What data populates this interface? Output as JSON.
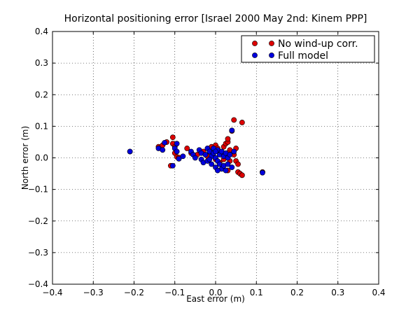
{
  "chart_data": {
    "type": "scatter",
    "title": "Horizontal positioning error [Israel 2000 May 2nd: Kinem PPP]",
    "xlabel": "East error (m)",
    "ylabel": "North error (m)",
    "xlim": [
      -0.4,
      0.4
    ],
    "ylim": [
      -0.4,
      0.4
    ],
    "xticks": [
      -0.4,
      -0.3,
      -0.2,
      -0.1,
      0.0,
      0.1,
      0.2,
      0.3,
      0.4
    ],
    "yticks": [
      -0.4,
      -0.3,
      -0.2,
      -0.1,
      0.0,
      0.1,
      0.2,
      0.3,
      0.4
    ],
    "xtick_labels": [
      "−0.4",
      "−0.3",
      "−0.2",
      "−0.1",
      "0.0",
      "0.1",
      "0.2",
      "0.3",
      "0.4"
    ],
    "ytick_labels": [
      "−0.4",
      "−0.3",
      "−0.2",
      "−0.1",
      "0.0",
      "0.1",
      "0.2",
      "0.3",
      "0.4"
    ],
    "grid": true,
    "legend_position": "top-right",
    "series": [
      {
        "name": "No wind-up corr.",
        "color": "#dd0000",
        "points": [
          [
            -0.21,
            0.02
          ],
          [
            -0.14,
            0.035
          ],
          [
            -0.13,
            0.04
          ],
          [
            -0.12,
            0.05
          ],
          [
            -0.105,
            0.065
          ],
          [
            -0.105,
            0.045
          ],
          [
            -0.1,
            0.035
          ],
          [
            -0.1,
            0.015
          ],
          [
            -0.095,
            0.003
          ],
          [
            -0.09,
            0.001
          ],
          [
            -0.11,
            -0.025
          ],
          [
            -0.07,
            0.03
          ],
          [
            -0.06,
            0.015
          ],
          [
            -0.045,
            0.01
          ],
          [
            -0.03,
            0.02
          ],
          [
            -0.01,
            0.035
          ],
          [
            0.0,
            0.04
          ],
          [
            0.005,
            0.03
          ],
          [
            0.01,
            0.02
          ],
          [
            0.02,
            0.035
          ],
          [
            0.025,
            0.045
          ],
          [
            0.03,
            0.05
          ],
          [
            0.03,
            0.06
          ],
          [
            0.035,
            0.025
          ],
          [
            0.04,
            0.085
          ],
          [
            0.045,
            0.12
          ],
          [
            0.065,
            0.112
          ],
          [
            0.05,
            0.03
          ],
          [
            0.045,
            0.01
          ],
          [
            0.03,
            0.015
          ],
          [
            0.02,
            -0.005
          ],
          [
            0.035,
            -0.01
          ],
          [
            0.05,
            -0.01
          ],
          [
            0.055,
            -0.02
          ],
          [
            0.03,
            -0.04
          ],
          [
            0.055,
            -0.045
          ],
          [
            0.06,
            -0.05
          ],
          [
            0.065,
            -0.055
          ],
          [
            0.01,
            -0.015
          ],
          [
            0.0,
            -0.005
          ],
          [
            -0.02,
            0.005
          ],
          [
            0.115,
            -0.045
          ]
        ]
      },
      {
        "name": "Full model",
        "color": "#0000dd",
        "points": [
          [
            -0.21,
            0.02
          ],
          [
            -0.14,
            0.03
          ],
          [
            -0.13,
            0.025
          ],
          [
            -0.125,
            0.048
          ],
          [
            -0.105,
            -0.025
          ],
          [
            -0.1,
            0.03
          ],
          [
            -0.095,
            0.045
          ],
          [
            -0.095,
            0.02
          ],
          [
            -0.09,
            -0.003
          ],
          [
            -0.08,
            0.005
          ],
          [
            -0.06,
            0.02
          ],
          [
            -0.055,
            0.01
          ],
          [
            -0.05,
            0.0
          ],
          [
            -0.04,
            0.025
          ],
          [
            -0.035,
            0.015
          ],
          [
            -0.035,
            -0.005
          ],
          [
            -0.03,
            -0.015
          ],
          [
            -0.025,
            0.01
          ],
          [
            -0.02,
            0.03
          ],
          [
            -0.02,
            -0.01
          ],
          [
            -0.015,
            0.02
          ],
          [
            -0.01,
            0.005
          ],
          [
            -0.01,
            -0.02
          ],
          [
            -0.005,
            0.015
          ],
          [
            0.0,
            0.0
          ],
          [
            0.0,
            -0.03
          ],
          [
            0.005,
            0.025
          ],
          [
            0.005,
            -0.01
          ],
          [
            0.01,
            0.01
          ],
          [
            0.01,
            -0.02
          ],
          [
            0.015,
            0.02
          ],
          [
            0.015,
            -0.035
          ],
          [
            0.02,
            0.005
          ],
          [
            0.02,
            -0.025
          ],
          [
            0.025,
            0.015
          ],
          [
            0.025,
            -0.04
          ],
          [
            0.03,
            0.0
          ],
          [
            0.03,
            -0.02
          ],
          [
            0.035,
            0.01
          ],
          [
            0.04,
            0.087
          ],
          [
            0.04,
            -0.03
          ],
          [
            0.045,
            0.02
          ],
          [
            0.005,
            -0.04
          ],
          [
            -0.005,
            0.03
          ],
          [
            0.0,
            0.02
          ],
          [
            -0.015,
            -0.005
          ],
          [
            0.115,
            -0.047
          ]
        ]
      }
    ]
  }
}
